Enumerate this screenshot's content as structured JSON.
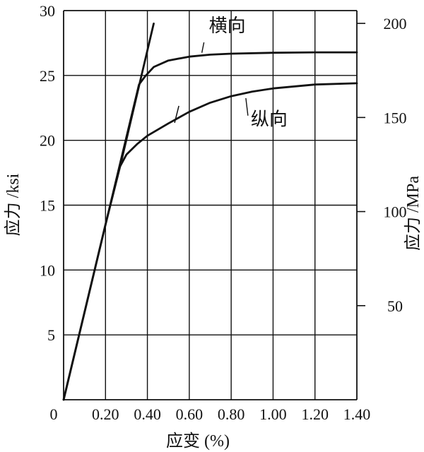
{
  "chart_data": {
    "type": "line",
    "xlabel": "应变 (%)",
    "ylabel_left": "应力 /ksi",
    "ylabel_right": "应力 /MPa",
    "xlim": [
      0,
      1.4
    ],
    "ylim_left": [
      0,
      30
    ],
    "ylim_right_MPa": [
      0,
      206.8
    ],
    "x_ticks": [
      0,
      0.2,
      0.4,
      0.6,
      0.8,
      1.0,
      1.2,
      1.4
    ],
    "x_tick_labels": [
      "0",
      "0.20",
      "0.40",
      "0.60",
      "0.80",
      "1.00",
      "1.20",
      "1.40"
    ],
    "y_ticks_left": [
      5,
      10,
      15,
      20,
      25,
      30
    ],
    "y_tick_labels_left": [
      "5",
      "10",
      "15",
      "20",
      "25",
      "30"
    ],
    "y_ticks_right": [
      50,
      100,
      150,
      200
    ],
    "y_tick_labels_right": [
      "50",
      "100",
      "150",
      "200"
    ],
    "grid": true,
    "series": [
      {
        "name": "横向",
        "x": [
          0.0,
          0.2,
          0.36,
          0.39,
          0.43,
          0.5,
          0.6,
          0.7,
          0.8,
          1.0,
          1.2,
          1.4
        ],
        "y": [
          0.0,
          13.5,
          24.3,
          24.95,
          25.65,
          26.15,
          26.45,
          26.6,
          26.68,
          26.75,
          26.78,
          26.78
        ]
      },
      {
        "name": "纵向",
        "x": [
          0.0,
          0.2,
          0.27,
          0.3,
          0.35,
          0.4,
          0.5,
          0.6,
          0.7,
          0.8,
          0.9,
          1.0,
          1.2,
          1.4
        ],
        "y": [
          0.0,
          13.5,
          18.0,
          18.9,
          19.7,
          20.35,
          21.3,
          22.2,
          22.9,
          23.4,
          23.75,
          24.0,
          24.3,
          24.4
        ]
      },
      {
        "name": "",
        "x": [
          0.27,
          0.43
        ],
        "y": [
          18.0,
          29.0
        ]
      }
    ],
    "annotations": [
      {
        "text": "横向",
        "x": 0.68,
        "y": 28.8
      },
      {
        "text": "纵向",
        "x": 0.88,
        "y": 21.6
      }
    ]
  }
}
